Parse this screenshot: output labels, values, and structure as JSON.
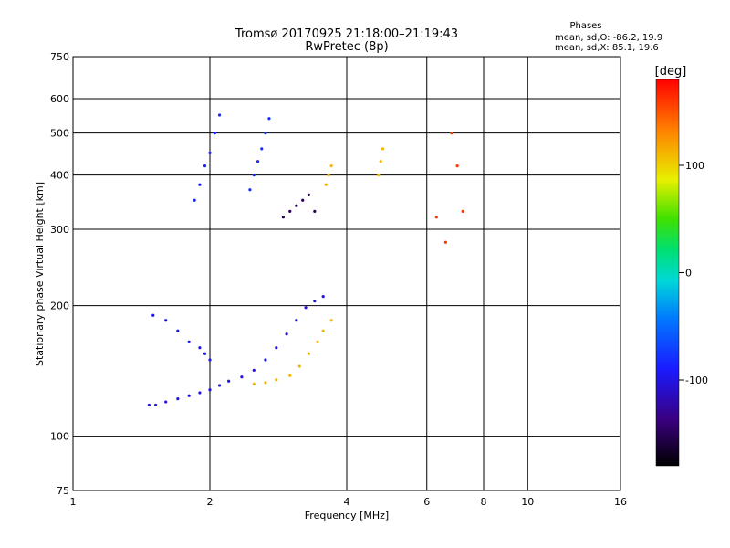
{
  "chart_data": {
    "type": "scatter",
    "title": "Tromsø 20170925 21:18:00–21:19:43",
    "subtitle": "RwPretec (8p)",
    "xlabel": "Frequency [MHz]",
    "ylabel": "Stationary phase Virtual Height [km]",
    "x_scale": "log",
    "y_scale": "log",
    "xlim": [
      1,
      16
    ],
    "ylim": [
      75,
      750
    ],
    "x_ticks": [
      "1",
      "2",
      "4",
      "6",
      "8",
      "10",
      "16"
    ],
    "y_ticks": [
      "75",
      "100",
      "200",
      "300",
      "400",
      "500",
      "600",
      "750"
    ],
    "grid": true,
    "phases_legend": {
      "heading": "Phases",
      "line_o": "mean, sd,O: -86.2, 19.9",
      "line_x": "mean, sd,X:  85.1, 19.6"
    },
    "colorbar": {
      "label": "[deg]",
      "range": [
        -180,
        180
      ],
      "tick_labels": [
        "100",
        "0",
        "-100"
      ],
      "tick_values": [
        100,
        0,
        -100
      ]
    },
    "series": [
      {
        "x": [
          1.47,
          1.52,
          1.6,
          1.7,
          1.8,
          1.9,
          2.0,
          2.1,
          2.2,
          2.35,
          2.5,
          2.65,
          2.8,
          2.95,
          3.1,
          3.25,
          3.4,
          3.55
        ],
        "y": [
          118,
          118,
          120,
          122,
          124,
          126,
          128,
          131,
          134,
          137,
          142,
          150,
          160,
          172,
          185,
          198,
          205,
          210
        ],
        "phase": -100
      },
      {
        "x": [
          2.5,
          2.65,
          2.8,
          3.0,
          3.15,
          3.3,
          3.45,
          3.55,
          3.7
        ],
        "y": [
          132,
          133,
          135,
          138,
          145,
          155,
          165,
          175,
          185
        ],
        "phase": 110
      },
      {
        "x": [
          1.5,
          1.6,
          1.7,
          1.8,
          1.9,
          1.95,
          2.0
        ],
        "y": [
          190,
          185,
          175,
          165,
          160,
          155,
          150
        ],
        "phase": -95
      },
      {
        "x": [
          1.85,
          1.9,
          1.95,
          2.0,
          2.05,
          2.1
        ],
        "y": [
          350,
          380,
          420,
          450,
          500,
          550
        ],
        "phase": -85
      },
      {
        "x": [
          2.45,
          2.5,
          2.55,
          2.6,
          2.65,
          2.7
        ],
        "y": [
          370,
          400,
          430,
          460,
          500,
          540
        ],
        "phase": -80
      },
      {
        "x": [
          2.9,
          3.0,
          3.1,
          3.2,
          3.3,
          3.4
        ],
        "y": [
          320,
          330,
          340,
          350,
          360,
          330
        ],
        "phase": -150
      },
      {
        "x": [
          3.6,
          3.65,
          3.7,
          4.7,
          4.75,
          4.8
        ],
        "y": [
          380,
          400,
          420,
          400,
          430,
          460
        ],
        "phase": 110
      },
      {
        "x": [
          6.3,
          6.6,
          6.8,
          7.0,
          7.2
        ],
        "y": [
          320,
          280,
          500,
          420,
          330
        ],
        "phase": 160
      }
    ]
  }
}
